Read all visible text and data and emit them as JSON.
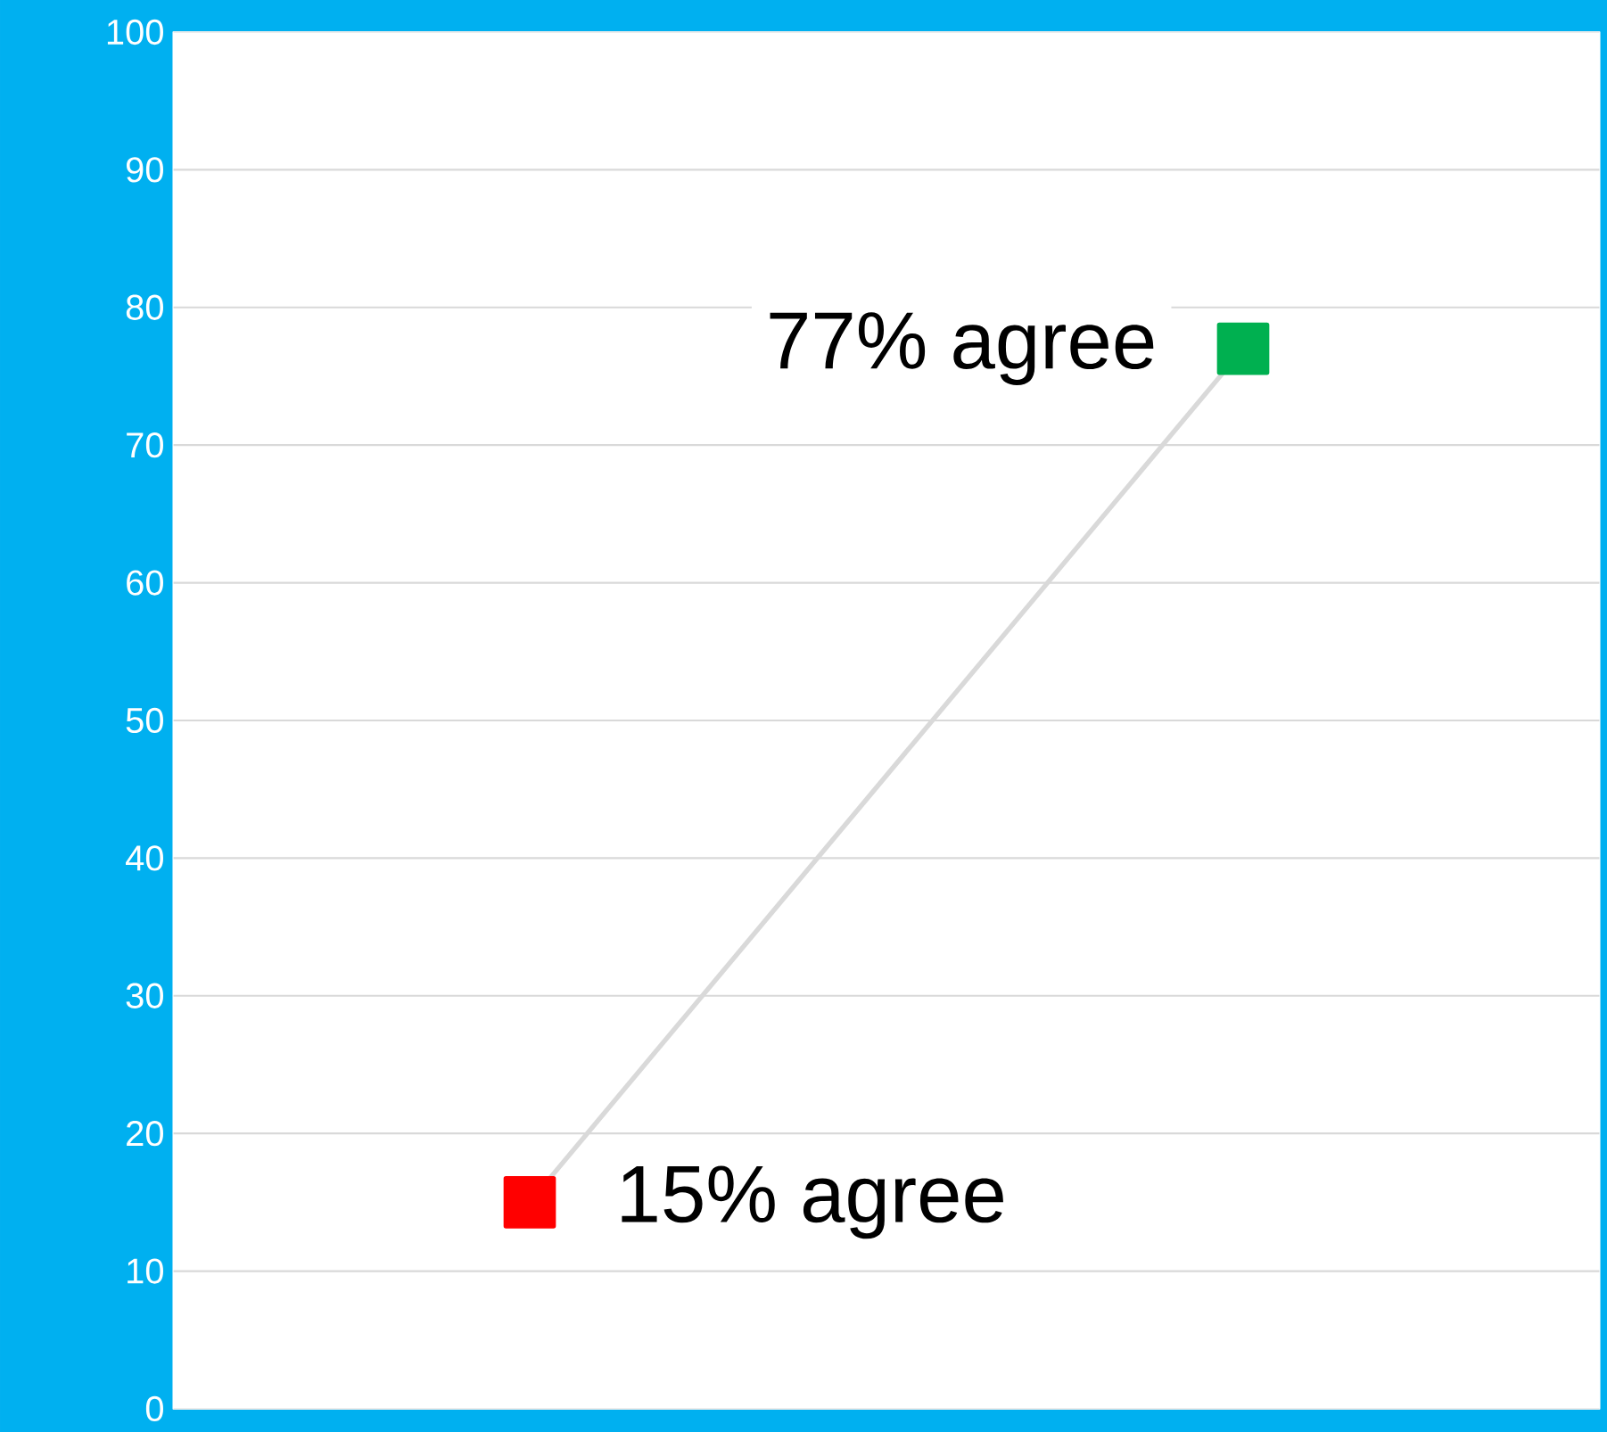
{
  "chart_data": {
    "type": "line",
    "categories": [
      null,
      null
    ],
    "values": [
      15,
      77
    ],
    "color": "#d9d9d9",
    "colors": [
      "#ff0000",
      "#00b050"
    ],
    "marker": "square",
    "value_labels": [
      "15% agree",
      "77% agree"
    ],
    "ylim": [
      0,
      100
    ],
    "yticks": [
      0,
      10,
      20,
      30,
      40,
      50,
      60,
      70,
      80,
      90,
      100
    ],
    "grid": "y"
  }
}
